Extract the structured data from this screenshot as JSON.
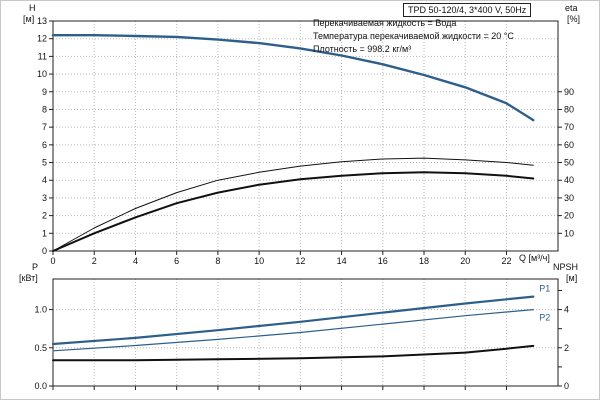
{
  "header": {
    "title_box": "TPD 50-120/4, 3*400 V, 50Hz"
  },
  "annotations": [
    "Перекачиваемая жидкость = Вода",
    "Температура перекачиваемой жидкости = 20 °C",
    "Плотность = 998.2 кг/м³"
  ],
  "colors": {
    "curve_blue": "#2d5f8d",
    "curve_black": "#111111",
    "grid": "#b8b8b8"
  },
  "chart_data": [
    {
      "type": "line",
      "title": "TPD 50-120/4, 3*400 V, 50Hz",
      "xlabel": "Q [м³/ч]",
      "ylabel": "H",
      "ylabel_unit": "[м]",
      "y2label": "eta",
      "y2label_unit": "[%]",
      "xlim": [
        0,
        24.5
      ],
      "ylim": [
        0,
        13
      ],
      "y2lim": [
        0,
        130
      ],
      "grid": true,
      "xticks": [
        {
          "v": 0,
          "t": "0"
        },
        {
          "v": 2,
          "t": "2"
        },
        {
          "v": 4,
          "t": "4"
        },
        {
          "v": 6,
          "t": "6"
        },
        {
          "v": 8,
          "t": "8"
        },
        {
          "v": 10,
          "t": "10"
        },
        {
          "v": 12,
          "t": "12"
        },
        {
          "v": 14,
          "t": "14"
        },
        {
          "v": 16,
          "t": "16"
        },
        {
          "v": 18,
          "t": "18"
        },
        {
          "v": 20,
          "t": "20"
        },
        {
          "v": 22,
          "t": "22"
        }
      ],
      "yticks": [
        {
          "v": 0,
          "t": "0"
        },
        {
          "v": 1,
          "t": "1"
        },
        {
          "v": 2,
          "t": "2"
        },
        {
          "v": 3,
          "t": "3"
        },
        {
          "v": 4,
          "t": "4"
        },
        {
          "v": 5,
          "t": "5"
        },
        {
          "v": 6,
          "t": "6"
        },
        {
          "v": 7,
          "t": "7"
        },
        {
          "v": 8,
          "t": "8"
        },
        {
          "v": 9,
          "t": "9"
        },
        {
          "v": 10,
          "t": "10"
        },
        {
          "v": 11,
          "t": "11"
        },
        {
          "v": 12,
          "t": "12"
        },
        {
          "v": 13,
          "t": "13"
        }
      ],
      "y2ticks": [
        {
          "v": 10,
          "t": "10"
        },
        {
          "v": 20,
          "t": "20"
        },
        {
          "v": 30,
          "t": "30"
        },
        {
          "v": 40,
          "t": "40"
        },
        {
          "v": 50,
          "t": "50"
        },
        {
          "v": 60,
          "t": "60"
        },
        {
          "v": 70,
          "t": "70"
        },
        {
          "v": 80,
          "t": "80"
        },
        {
          "v": 90,
          "t": "90"
        }
      ],
      "series": [
        {
          "name": "H-curve",
          "axis": "y",
          "color": "#2d5f8d",
          "width": 2.4,
          "points": [
            [
              0,
              12.2
            ],
            [
              2,
              12.2
            ],
            [
              4,
              12.15
            ],
            [
              6,
              12.1
            ],
            [
              8,
              11.95
            ],
            [
              10,
              11.75
            ],
            [
              12,
              11.45
            ],
            [
              14,
              11.05
            ],
            [
              16,
              10.55
            ],
            [
              18,
              9.95
            ],
            [
              20,
              9.25
            ],
            [
              22,
              8.35
            ],
            [
              23.3,
              7.4
            ]
          ]
        },
        {
          "name": "eta1-curve",
          "axis": "y2",
          "color": "#111111",
          "width": 1,
          "points": [
            [
              0,
              0
            ],
            [
              2,
              13
            ],
            [
              4,
              24
            ],
            [
              6,
              33
            ],
            [
              8,
              40
            ],
            [
              10,
              44.5
            ],
            [
              12,
              48
            ],
            [
              14,
              50.5
            ],
            [
              16,
              52
            ],
            [
              18,
              52.5
            ],
            [
              20,
              51.5
            ],
            [
              22,
              50
            ],
            [
              23.3,
              48.5
            ]
          ]
        },
        {
          "name": "eta2-curve",
          "axis": "y2",
          "color": "#111111",
          "width": 2,
          "points": [
            [
              0,
              0
            ],
            [
              2,
              10
            ],
            [
              4,
              19
            ],
            [
              6,
              27
            ],
            [
              8,
              33
            ],
            [
              10,
              37.5
            ],
            [
              12,
              40.5
            ],
            [
              14,
              42.5
            ],
            [
              16,
              44
            ],
            [
              18,
              44.5
            ],
            [
              20,
              44
            ],
            [
              22,
              42.5
            ],
            [
              23.3,
              41
            ]
          ]
        }
      ]
    },
    {
      "type": "line",
      "title": "",
      "xlabel": "",
      "ylabel": "P",
      "ylabel_unit": "[кВт]",
      "y2label": "NPSH",
      "y2label_unit": "[м]",
      "xlim": [
        0,
        24.5
      ],
      "ylim": [
        0,
        1.4
      ],
      "y2lim": [
        0,
        5.6
      ],
      "grid": true,
      "xticks": [
        {
          "v": 0,
          "t": ""
        },
        {
          "v": 2,
          "t": ""
        },
        {
          "v": 4,
          "t": ""
        },
        {
          "v": 6,
          "t": ""
        },
        {
          "v": 8,
          "t": ""
        },
        {
          "v": 10,
          "t": ""
        },
        {
          "v": 12,
          "t": ""
        },
        {
          "v": 14,
          "t": ""
        },
        {
          "v": 16,
          "t": ""
        },
        {
          "v": 18,
          "t": ""
        },
        {
          "v": 20,
          "t": ""
        },
        {
          "v": 22,
          "t": ""
        }
      ],
      "yticks": [
        {
          "v": 0,
          "t": "0.0"
        },
        {
          "v": 0.5,
          "t": "0.5"
        },
        {
          "v": 1.0,
          "t": "1.0"
        }
      ],
      "y2ticks": [
        {
          "v": 0,
          "t": "0"
        },
        {
          "v": 1,
          "t": ""
        },
        {
          "v": 2,
          "t": "2"
        },
        {
          "v": 3,
          "t": ""
        },
        {
          "v": 4,
          "t": "4"
        },
        {
          "v": 5,
          "t": ""
        }
      ],
      "series": [
        {
          "name": "P1-curve",
          "axis": "y",
          "color": "#2d5f8d",
          "width": 2.2,
          "label": "P1",
          "label_side": "above",
          "points": [
            [
              0,
              0.55
            ],
            [
              4,
              0.63
            ],
            [
              8,
              0.73
            ],
            [
              12,
              0.84
            ],
            [
              16,
              0.96
            ],
            [
              20,
              1.08
            ],
            [
              23.3,
              1.17
            ]
          ]
        },
        {
          "name": "P2-curve",
          "axis": "y",
          "color": "#2d5f8d",
          "width": 1.2,
          "label": "P2",
          "label_side": "below",
          "points": [
            [
              0,
              0.46
            ],
            [
              4,
              0.53
            ],
            [
              8,
              0.61
            ],
            [
              12,
              0.7
            ],
            [
              16,
              0.81
            ],
            [
              20,
              0.92
            ],
            [
              23.3,
              1.0
            ]
          ]
        },
        {
          "name": "NPSH-curve",
          "axis": "y2",
          "color": "#111111",
          "width": 2,
          "points": [
            [
              0,
              1.35
            ],
            [
              4,
              1.35
            ],
            [
              8,
              1.4
            ],
            [
              12,
              1.45
            ],
            [
              16,
              1.55
            ],
            [
              20,
              1.75
            ],
            [
              22,
              1.95
            ],
            [
              23.3,
              2.1
            ]
          ]
        }
      ]
    }
  ]
}
